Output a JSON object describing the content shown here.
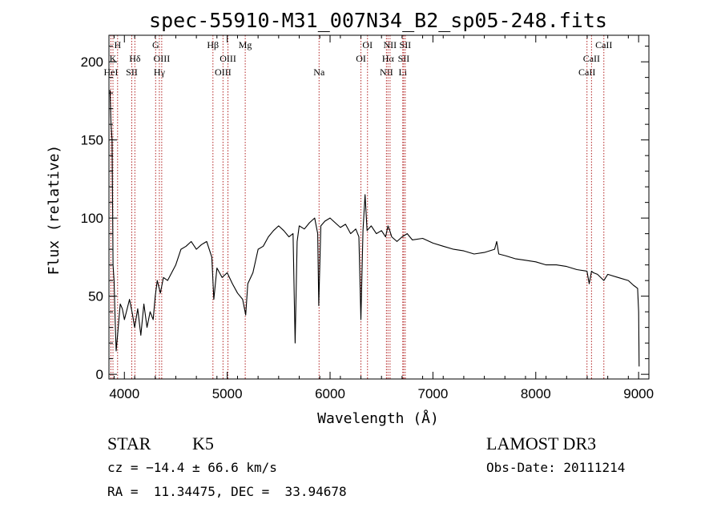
{
  "chart_data": {
    "type": "line",
    "title": "spec-55910-M31_007N34_B2_sp05-248.fits",
    "xlabel": "Wavelength (Å)",
    "ylabel": "Flux (relative)",
    "xlim": [
      3850,
      9100
    ],
    "ylim": [
      -3,
      217
    ],
    "x_ticks": [
      {
        "value": 4000,
        "label": "4000"
      },
      {
        "value": 5000,
        "label": "5000"
      },
      {
        "value": 6000,
        "label": "6000"
      },
      {
        "value": 7000,
        "label": "7000"
      },
      {
        "value": 8000,
        "label": "8000"
      },
      {
        "value": 9000,
        "label": "9000"
      }
    ],
    "y_ticks": [
      {
        "value": 0,
        "label": "0"
      },
      {
        "value": 50,
        "label": "50"
      },
      {
        "value": 100,
        "label": "100"
      },
      {
        "value": 150,
        "label": "150"
      },
      {
        "value": 200,
        "label": "200"
      }
    ],
    "grid": false,
    "series": [
      {
        "color": "#000000",
        "x": [
          3860,
          3870,
          3880,
          3890,
          3900,
          3910,
          3920,
          3940,
          3960,
          3980,
          4000,
          4020,
          4050,
          4080,
          4100,
          4130,
          4160,
          4190,
          4220,
          4250,
          4280,
          4300,
          4320,
          4350,
          4380,
          4420,
          4460,
          4500,
          4550,
          4600,
          4650,
          4700,
          4750,
          4800,
          4850,
          4870,
          4900,
          4950,
          5000,
          5050,
          5100,
          5150,
          5180,
          5200,
          5250,
          5300,
          5350,
          5400,
          5450,
          5500,
          5550,
          5600,
          5640,
          5660,
          5680,
          5700,
          5750,
          5800,
          5850,
          5880,
          5890,
          5896,
          5910,
          5950,
          6000,
          6050,
          6100,
          6150,
          6200,
          6250,
          6280,
          6300,
          6320,
          6340,
          6360,
          6400,
          6450,
          6500,
          6540,
          6563,
          6580,
          6600,
          6650,
          6700,
          6750,
          6800,
          6900,
          7000,
          7100,
          7200,
          7300,
          7400,
          7500,
          7600,
          7620,
          7640,
          7700,
          7800,
          7900,
          8000,
          8100,
          8200,
          8300,
          8400,
          8498,
          8520,
          8542,
          8560,
          8600,
          8662,
          8700,
          8800,
          8900,
          8950,
          8990,
          9000,
          9005
        ],
        "y": [
          182,
          160,
          150,
          70,
          60,
          35,
          15,
          30,
          45,
          42,
          35,
          40,
          48,
          38,
          30,
          42,
          25,
          45,
          30,
          40,
          35,
          50,
          60,
          52,
          62,
          60,
          65,
          70,
          80,
          82,
          85,
          80,
          83,
          85,
          75,
          48,
          68,
          62,
          65,
          58,
          52,
          48,
          38,
          58,
          65,
          80,
          82,
          88,
          92,
          95,
          92,
          88,
          90,
          20,
          85,
          95,
          93,
          97,
          100,
          90,
          44,
          60,
          95,
          98,
          100,
          97,
          94,
          96,
          90,
          93,
          88,
          35,
          92,
          115,
          92,
          95,
          90,
          92,
          88,
          95,
          92,
          88,
          85,
          88,
          90,
          86,
          87,
          84,
          82,
          80,
          79,
          77,
          78,
          80,
          85,
          77,
          76,
          74,
          73,
          72,
          70,
          70,
          69,
          67,
          66,
          58,
          66,
          65,
          64,
          60,
          64,
          62,
          60,
          57,
          55,
          40,
          5
        ]
      }
    ],
    "spectral_lines": [
      {
        "wavelength": 3869,
        "label": "HeI",
        "row": 3
      },
      {
        "wavelength": 3889,
        "label": "K",
        "row": 2
      },
      {
        "wavelength": 3934,
        "label": "H",
        "row": 1
      },
      {
        "wavelength": 4072,
        "label": "SII",
        "row": 3
      },
      {
        "wavelength": 4102,
        "label": "Hδ",
        "row": 2
      },
      {
        "wavelength": 4304,
        "label": "G",
        "row": 1
      },
      {
        "wavelength": 4340,
        "label": "Hγ",
        "row": 3
      },
      {
        "wavelength": 4363,
        "label": "OIII",
        "row": 2
      },
      {
        "wavelength": 4861,
        "label": "Hβ",
        "row": 1
      },
      {
        "wavelength": 4959,
        "label": "OIII",
        "row": 3
      },
      {
        "wavelength": 5007,
        "label": "OIII",
        "row": 2
      },
      {
        "wavelength": 5175,
        "label": "Mg",
        "row": 1
      },
      {
        "wavelength": 5893,
        "label": "Na",
        "row": 3
      },
      {
        "wavelength": 6300,
        "label": "OI",
        "row": 2
      },
      {
        "wavelength": 6364,
        "label": "OI",
        "row": 1
      },
      {
        "wavelength": 6548,
        "label": "NII",
        "row": 3
      },
      {
        "wavelength": 6563,
        "label": "Hα",
        "row": 2
      },
      {
        "wavelength": 6583,
        "label": "NII",
        "row": 1
      },
      {
        "wavelength": 6707,
        "label": "Li",
        "row": 3
      },
      {
        "wavelength": 6716,
        "label": "SII",
        "row": 2
      },
      {
        "wavelength": 6731,
        "label": "SII",
        "row": 1
      },
      {
        "wavelength": 8498,
        "label": "CaII",
        "row": 3
      },
      {
        "wavelength": 8542,
        "label": "CaII",
        "row": 2
      },
      {
        "wavelength": 8662,
        "label": "CaII",
        "row": 1
      }
    ],
    "line_color": "#b22222"
  },
  "info": {
    "class_label": "STAR",
    "subclass_label": "K5",
    "survey_label": "LAMOST DR3",
    "cz_text": "cz = −14.4 ± 66.6 km/s",
    "obs_date_text": "Obs-Date: 20111214",
    "coords_text": "RA =  11.34475, DEC =  33.94678"
  }
}
